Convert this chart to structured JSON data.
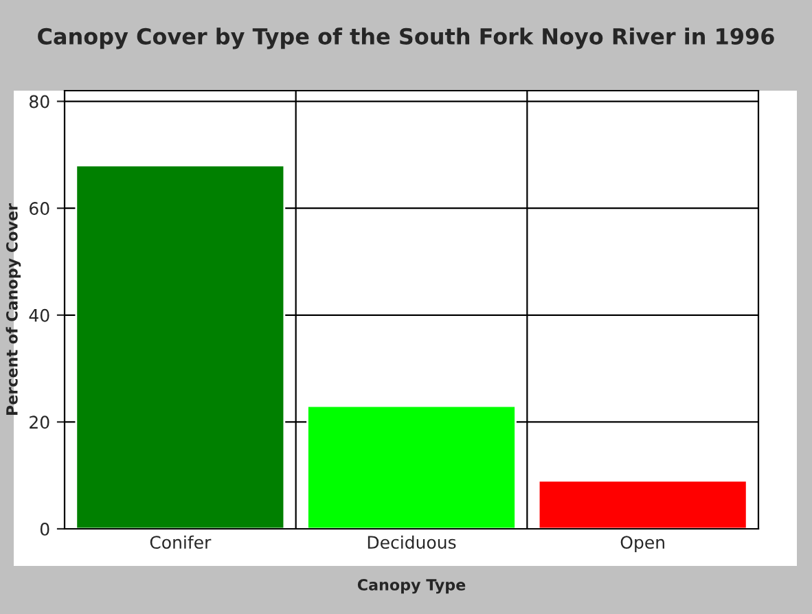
{
  "chart_data": {
    "type": "bar",
    "title": "Canopy Cover by Type of the South Fork Noyo River in 1996",
    "xlabel": "Canopy Type",
    "ylabel": "Percent of Canopy Cover",
    "categories": [
      "Conifer",
      "Deciduous",
      "Open"
    ],
    "values": [
      68,
      23,
      9
    ],
    "colors": [
      "#008000",
      "#00ff00",
      "#ff0000"
    ],
    "ylim": [
      0,
      82
    ],
    "yticks": [
      0,
      20,
      40,
      60,
      80
    ],
    "grid": true,
    "legend": false
  }
}
